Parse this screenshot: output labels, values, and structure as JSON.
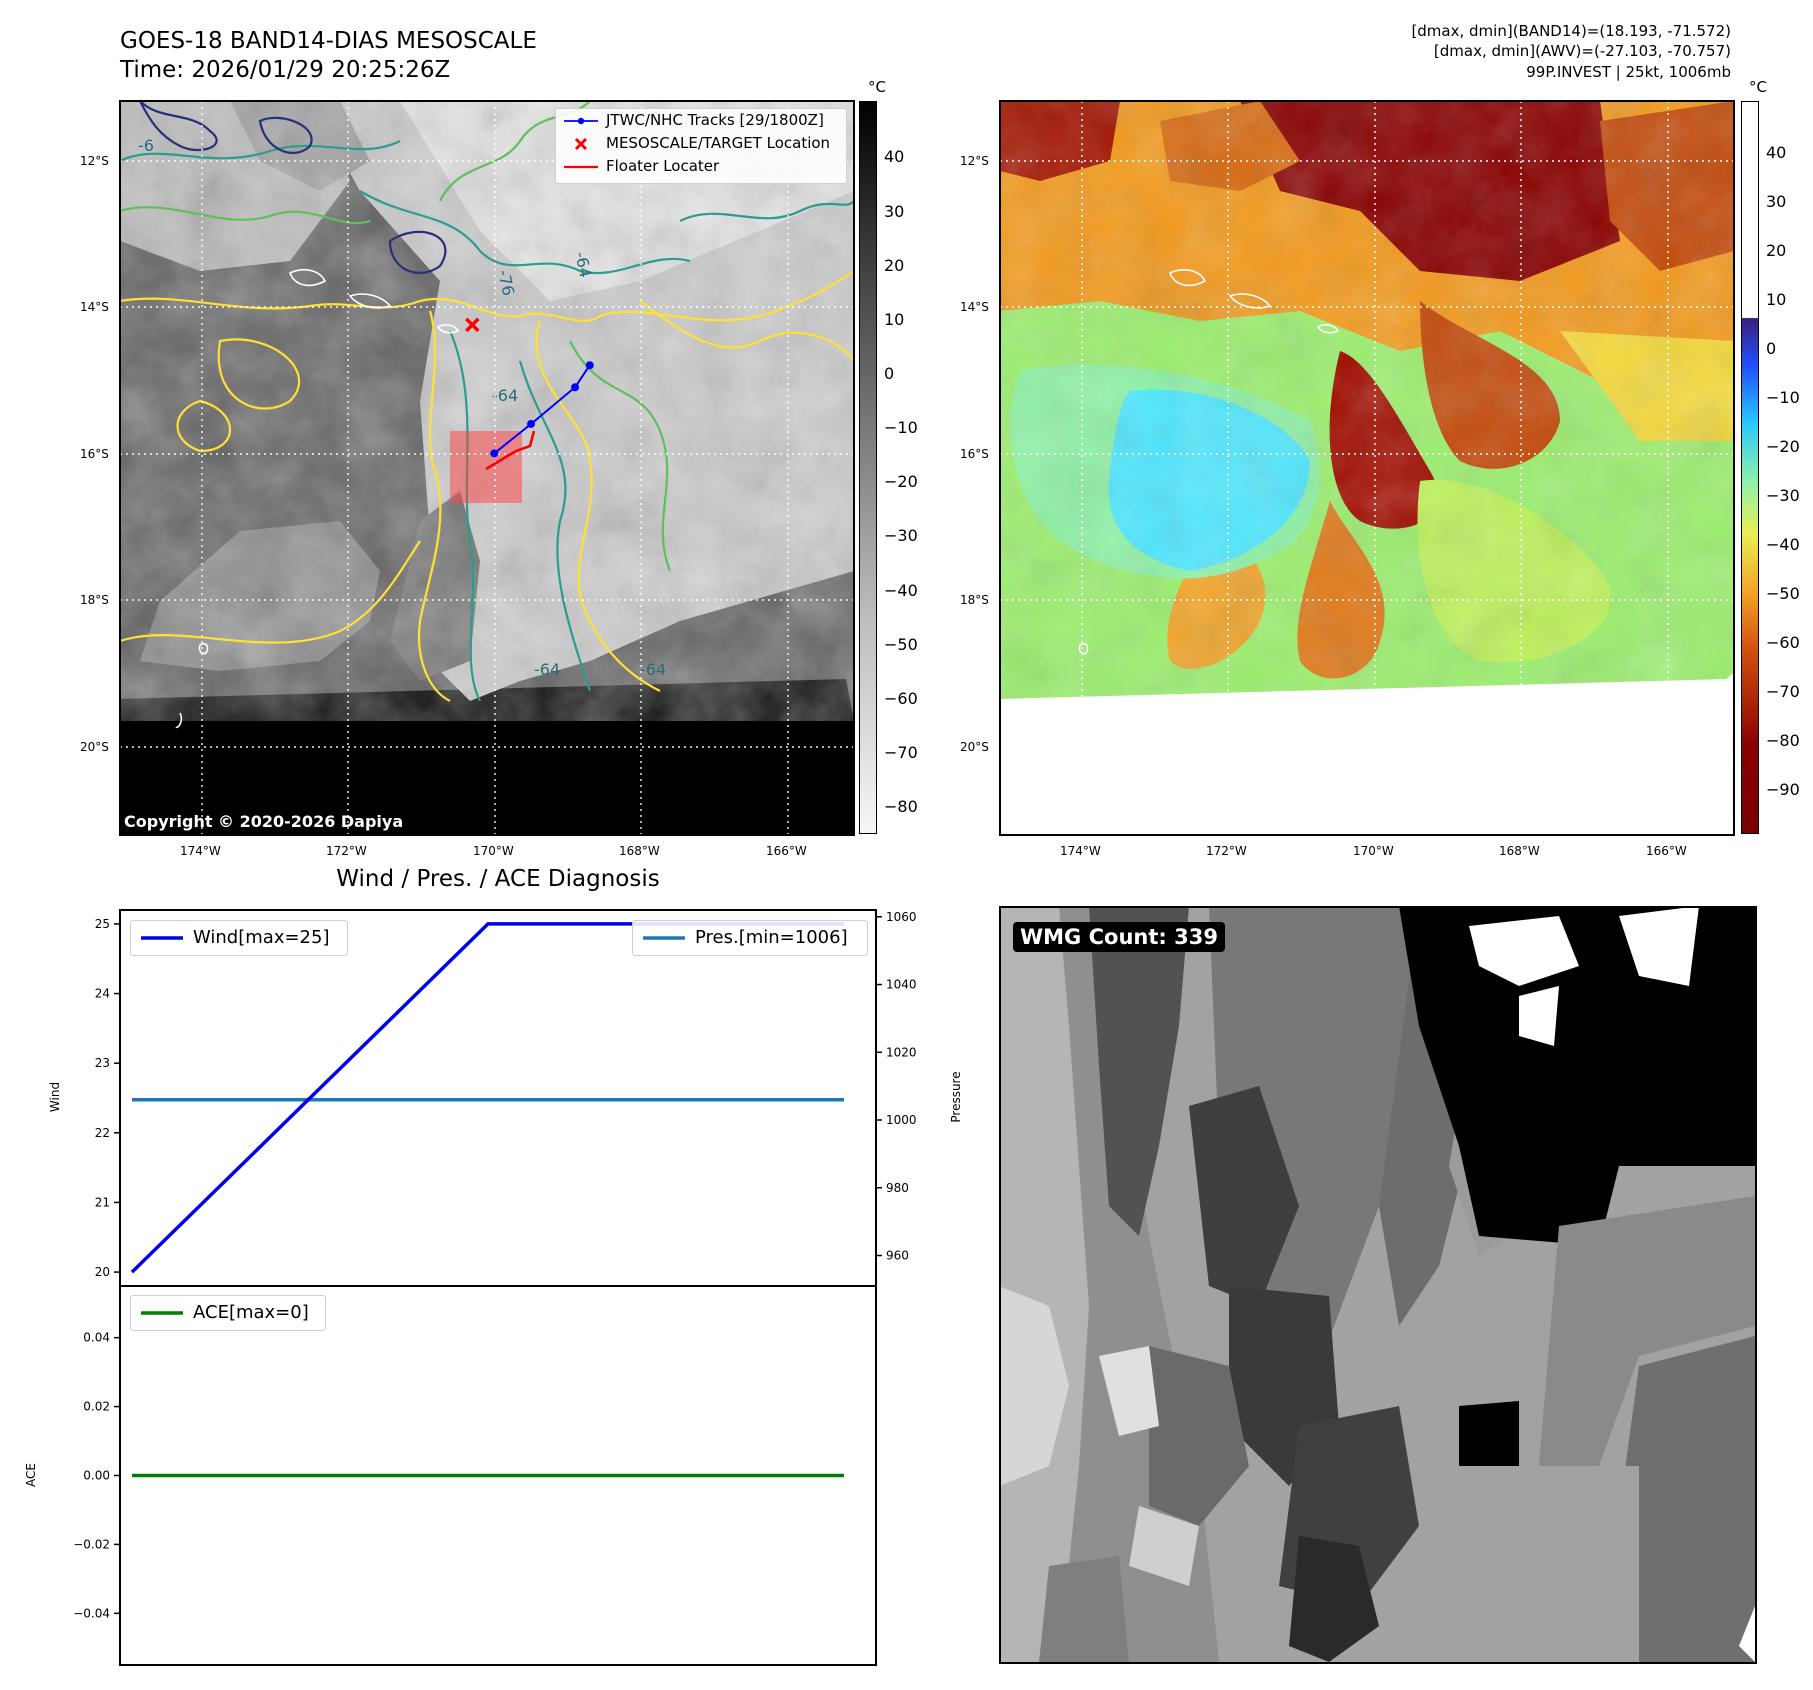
{
  "header": {
    "title_line1": "GOES-18 BAND14-DIAS MESOSCALE",
    "title_line2": "Time: 2026/01/29 20:25:26Z",
    "info_line1": "[dmax, dmin](BAND14)=(18.193, -71.572)",
    "info_line2": "[dmax, dmin](AWV)=(-27.103, -70.757)",
    "info_line3": "99P.INVEST | 25kt, 1006mb"
  },
  "map": {
    "lat_labels": [
      "12°S",
      "14°S",
      "16°S",
      "18°S",
      "20°S"
    ],
    "lon_labels": [
      "174°W",
      "172°W",
      "170°W",
      "168°W",
      "166°W"
    ],
    "copyright": "Copyright © 2020-2026 Dapiya",
    "contour_labels": [
      "-76",
      "-64",
      "-64",
      "-64",
      "-64",
      "-6"
    ]
  },
  "legend_map": {
    "tracks": "JTWC/NHC Tracks [29/1800Z]",
    "target": "MESOSCALE/TARGET Location",
    "floater": "Floater Locater"
  },
  "colorbar_left": {
    "unit": "°C",
    "ticks": [
      "40",
      "30",
      "20",
      "10",
      "0",
      "−10",
      "−20",
      "−30",
      "−40",
      "−50",
      "−60",
      "−70",
      "−80"
    ]
  },
  "colorbar_right": {
    "unit": "°C",
    "ticks": [
      "40",
      "30",
      "20",
      "10",
      "0",
      "−10",
      "−20",
      "−30",
      "−40",
      "−50",
      "−60",
      "−70",
      "−80",
      "−90"
    ]
  },
  "diagnosis": {
    "title": "Wind / Pres. / ACE Diagnosis",
    "wind_axis_label": "Wind",
    "pressure_axis_label": "Pressure",
    "ace_axis_label": "ACE",
    "wind_ticks": [
      "25",
      "24",
      "23",
      "22",
      "21",
      "20"
    ],
    "pressure_ticks": [
      "1060",
      "1040",
      "1020",
      "1000",
      "980",
      "960"
    ],
    "ace_ticks": [
      "0.04",
      "0.02",
      "0.00",
      "−0.02",
      "−0.04"
    ],
    "legend_wind": "Wind[max=25]",
    "legend_pressure": "Pres.[min=1006]",
    "legend_ace": "ACE[max=0]"
  },
  "wmg": {
    "label": "WMG Count: 339"
  },
  "colors": {
    "wind_line": "#0000ee",
    "pressure_line": "#1f77b4",
    "ace_line": "#008000",
    "track": "#0000ff",
    "floater": "#ff0000",
    "contour_yellow": "#ffe033",
    "contour_green": "#5fbf5a",
    "contour_teal": "#2a9d8f",
    "contour_navy": "#28307a"
  },
  "chart_data": [
    {
      "type": "line",
      "title": "Wind / Pres. / ACE Diagnosis",
      "xlabel": "",
      "series": [
        {
          "name": "Wind[max=25]",
          "axis": "Wind",
          "x": [
            0,
            1,
            2
          ],
          "values": [
            20,
            25,
            25
          ]
        },
        {
          "name": "Pres.[min=1006]",
          "axis": "Pressure",
          "x": [
            0,
            1,
            2
          ],
          "values": [
            1006,
            1006,
            1006
          ]
        }
      ],
      "wind_ylim": [
        19.8,
        25.2
      ],
      "pressure_ylim": [
        951,
        1062
      ],
      "legend": [
        "top-left",
        "top-right"
      ],
      "grid": false
    },
    {
      "type": "line",
      "series": [
        {
          "name": "ACE[max=0]",
          "axis": "ACE",
          "x": [
            0,
            1,
            2
          ],
          "values": [
            0,
            0,
            0
          ]
        }
      ],
      "ylim": [
        -0.055,
        0.055
      ],
      "legend": "top-left",
      "grid": false
    },
    {
      "type": "line",
      "title": "",
      "series": [
        {
          "name": "JTWC/NHC Tracks [29/1800Z]",
          "lon": [
            -168.8,
            -169.0,
            -169.6,
            -170.1
          ],
          "lat": [
            -14.8,
            -15.1,
            -15.6,
            -16.0
          ]
        },
        {
          "name": "MESOSCALE/TARGET Location",
          "lon": [
            -170.4
          ],
          "lat": [
            -14.25
          ]
        }
      ],
      "lon_range": [
        -175.2,
        -165.2
      ],
      "lat_range": [
        -21.2,
        -11.2
      ],
      "grid": true,
      "legend": "top-right"
    }
  ]
}
